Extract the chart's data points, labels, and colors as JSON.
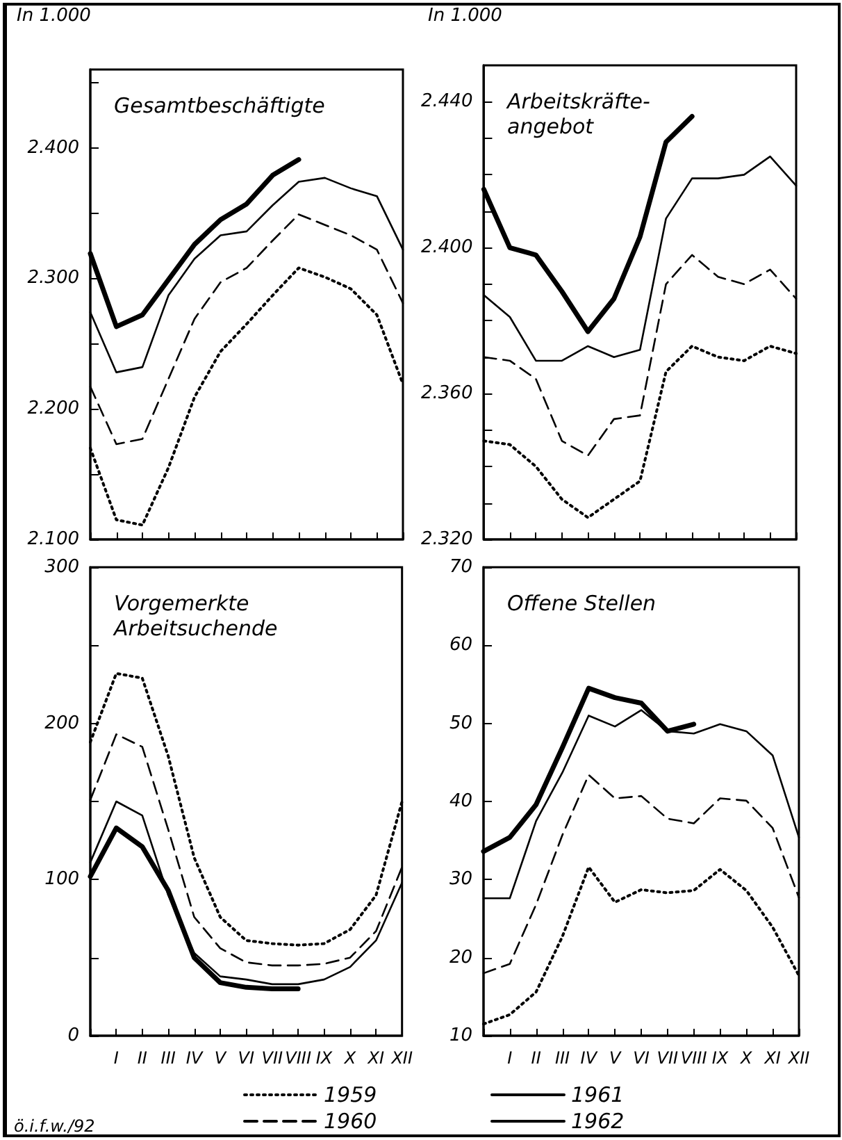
{
  "chart_data": [
    {
      "type": "line",
      "title": "Gesamtbeschäftigte",
      "ylabel": "In 1.000",
      "categories": [
        null,
        null,
        null,
        null,
        null,
        null,
        null,
        null,
        null,
        null,
        null,
        null,
        null
      ],
      "ylim": [
        2100,
        2460
      ],
      "yticks": [
        {
          "value": 2100,
          "label": "2.100"
        },
        {
          "value": 2150,
          "label": null
        },
        {
          "value": 2200,
          "label": "2.200"
        },
        {
          "value": 2250,
          "label": null
        },
        {
          "value": 2300,
          "label": "2.300"
        },
        {
          "value": 2350,
          "label": null
        },
        {
          "value": 2400,
          "label": "2.400"
        },
        {
          "value": 2450,
          "label": null
        }
      ],
      "tick_labels": "y",
      "marker": "none",
      "legend": false,
      "series": [
        {
          "color": "#000000",
          "line_style": "dotted",
          "values": [
            2170,
            2115,
            2111,
            2155,
            2209,
            2244,
            2265,
            2287,
            2308,
            2301,
            2292,
            2272,
            2219
          ]
        },
        {
          "color": "#000000",
          "line_style": "dashed",
          "values": [
            2217,
            2173,
            2177,
            2223,
            2269,
            2297,
            2308,
            2329,
            2349,
            2341,
            2333,
            2322,
            2281
          ]
        },
        {
          "color": "#000000",
          "line_style": "solid",
          "values": [
            2274,
            2228,
            2232,
            2287,
            2315,
            2333,
            2336,
            2356,
            2374,
            2377,
            2369,
            2363,
            2322
          ]
        },
        {
          "color": "#000000",
          "line_style": "solid",
          "values": [
            2319,
            2263,
            2272,
            2299,
            2326,
            2345,
            2357,
            2379,
            2391,
            null,
            null,
            null,
            null
          ]
        }
      ]
    },
    {
      "type": "line",
      "title": "Arbeitskräfte-\nangebot",
      "ylabel": "In 1.000",
      "categories": [
        null,
        null,
        null,
        null,
        null,
        null,
        null,
        null,
        null,
        null,
        null,
        null,
        null
      ],
      "ylim": [
        2320,
        2450
      ],
      "yticks": [
        {
          "value": 2320,
          "label": "2.320"
        },
        {
          "value": 2330,
          "label": null
        },
        {
          "value": 2340,
          "label": null
        },
        {
          "value": 2350,
          "label": null
        },
        {
          "value": 2360,
          "label": "2.360"
        },
        {
          "value": 2370,
          "label": null
        },
        {
          "value": 2380,
          "label": null
        },
        {
          "value": 2390,
          "label": null
        },
        {
          "value": 2400,
          "label": "2.400"
        },
        {
          "value": 2410,
          "label": null
        },
        {
          "value": 2420,
          "label": null
        },
        {
          "value": 2430,
          "label": null
        },
        {
          "value": 2440,
          "label": "2.440"
        }
      ],
      "tick_labels": "y",
      "marker": "none",
      "legend": false,
      "series": [
        {
          "color": "#000000",
          "line_style": "dotted",
          "values": [
            2347,
            2346,
            2340,
            2331,
            2326,
            2331,
            2336,
            2366,
            2373,
            2370,
            2369,
            2373,
            2371
          ]
        },
        {
          "color": "#000000",
          "line_style": "dashed",
          "values": [
            2370,
            2369,
            2364,
            2347,
            2343,
            2353,
            2354,
            2390,
            2398,
            2392,
            2390,
            2394,
            2386
          ]
        },
        {
          "color": "#000000",
          "line_style": "solid",
          "values": [
            2387,
            2381,
            2369,
            2369,
            2373,
            2370,
            2372,
            2408,
            2419,
            2419,
            2420,
            2425,
            2417
          ]
        },
        {
          "color": "#000000",
          "line_style": "solid",
          "values": [
            2416,
            2400,
            2398,
            2388,
            2377,
            2386,
            2403,
            2429,
            2436,
            null,
            null,
            null,
            null
          ]
        }
      ]
    },
    {
      "type": "line",
      "title": "Vorgemerkte\nArbeitsuchende",
      "categories": [
        null,
        "I",
        "II",
        "III",
        "IV",
        "V",
        "VI",
        "VII",
        "VIII",
        "IX",
        "X",
        "XI",
        "XII"
      ],
      "ylim": [
        0,
        300
      ],
      "yticks": [
        0,
        {
          "value": 50,
          "label": null
        },
        100,
        {
          "value": 150,
          "label": null
        },
        200,
        {
          "value": 250,
          "label": null
        },
        300
      ],
      "marker": "none",
      "legend": "bottom",
      "annotations": [
        "ö.i.f.w./92"
      ],
      "series": [
        {
          "name": "1959",
          "color": "#000000",
          "line_style": "dotted",
          "values": [
            188,
            232,
            229,
            179,
            114,
            76,
            61,
            59,
            58,
            59,
            68,
            90,
            150
          ]
        },
        {
          "name": "1960",
          "color": "#000000",
          "line_style": "dashed",
          "values": [
            151,
            193,
            185,
            132,
            76,
            56,
            47,
            45,
            45,
            46,
            50,
            67,
            108
          ]
        },
        {
          "color": "#000000",
          "line_style": "solid",
          "values": [
            111,
            150,
            141,
            90,
            53,
            38,
            36,
            33,
            33,
            36,
            44,
            61,
            98
          ]
        },
        {
          "color": "#000000",
          "line_style": "solid",
          "values": [
            102,
            133,
            121,
            93,
            50,
            34,
            31,
            30,
            30,
            null,
            null,
            null,
            null
          ]
        }
      ]
    },
    {
      "type": "line",
      "title": "Offene Stellen",
      "categories": [
        null,
        "I",
        "II",
        "III",
        "IV",
        "V",
        "VI",
        "VII",
        "VIII",
        "IX",
        "X",
        "XI",
        "XII"
      ],
      "ylim": [
        10,
        70
      ],
      "yticks": [
        10,
        20,
        30,
        40,
        50,
        60,
        70
      ],
      "marker": "none",
      "legend": "bottom",
      "series": [
        {
          "color": "#000000",
          "line_style": "dotted",
          "values": [
            11.5,
            12.7,
            15.6,
            22.7,
            31.6,
            27.1,
            28.7,
            28.3,
            28.6,
            31.3,
            28.6,
            23.9,
            17.7
          ]
        },
        {
          "color": "#000000",
          "line_style": "dashed",
          "values": [
            18,
            19.2,
            26.8,
            35.7,
            43.4,
            40.4,
            40.7,
            37.8,
            37.2,
            40.4,
            40.1,
            36.6,
            27.7
          ]
        },
        {
          "name": "1961",
          "color": "#000000",
          "line_style": "solid",
          "values": [
            27.6,
            27.6,
            37.5,
            43.7,
            51,
            49.6,
            51.7,
            49,
            48.7,
            49.9,
            49,
            45.9,
            35.4
          ]
        },
        {
          "name": "1962",
          "color": "#000000",
          "line_style": "solid",
          "values": [
            33.6,
            35.4,
            39.6,
            46.9,
            54.5,
            53.3,
            52.6,
            49,
            49.9,
            null,
            null,
            null,
            null
          ]
        }
      ]
    }
  ]
}
